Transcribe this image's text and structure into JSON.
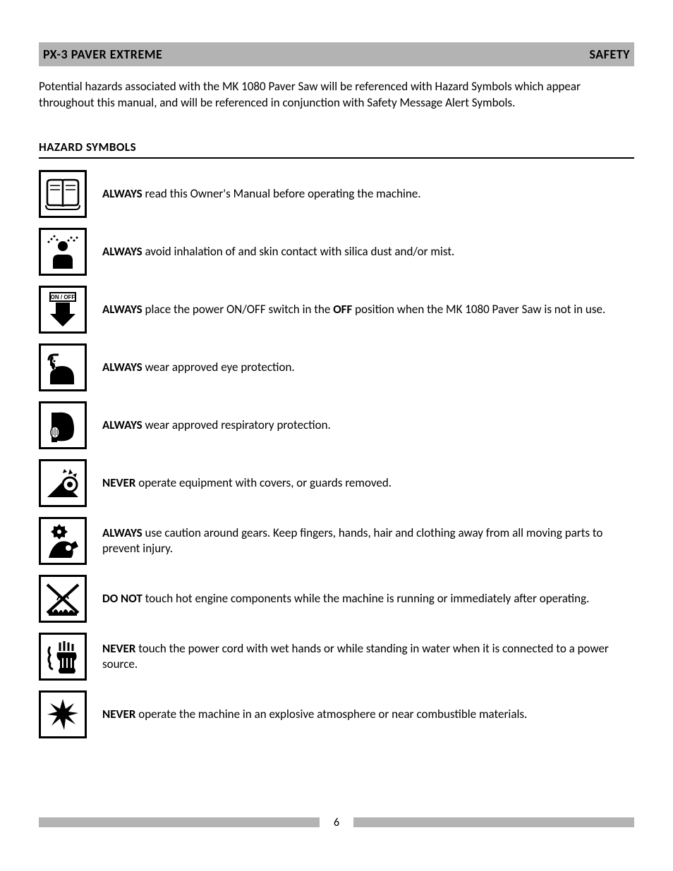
{
  "header": {
    "left": "PX-3 PAVER EXTREME",
    "right": "SAFETY"
  },
  "intro_text": "Potential hazards associated with the MK 1080 Paver Saw will be referenced with Hazard Symbols which appear throughout this manual, and will be referenced in conjunction with Safety Message Alert Symbols.",
  "section_title": "HAZARD SYMBOLS",
  "hazards": [
    {
      "bold": "ALWAYS",
      "rest": " read this Owner's Manual before operating the machine.",
      "icon": "book"
    },
    {
      "bold": "ALWAYS",
      "rest": " avoid inhalation of and skin contact with silica dust and/or mist.",
      "icon": "dust"
    },
    {
      "bold": "ALWAYS",
      "rest_pre": " place the power ON/OFF switch in the ",
      "bold2": "OFF",
      "rest_post": " position when the MK 1080 Paver Saw is not in use.",
      "icon": "onoff"
    },
    {
      "bold": "ALWAYS",
      "rest": " wear approved eye protection.",
      "icon": "eye"
    },
    {
      "bold": "ALWAYS",
      "rest": " wear approved respiratory protection.",
      "icon": "resp"
    },
    {
      "bold": "NEVER",
      "rest": " operate equipment with covers, or guards removed.",
      "icon": "guard"
    },
    {
      "bold": "ALWAYS",
      "rest": " use caution around gears. Keep fingers, hands, hair and clothing away from all moving parts to prevent injury.",
      "icon": "gears"
    },
    {
      "bold": "DO NOT",
      "rest": " touch hot engine components while the machine is running or immediately after operating.",
      "icon": "hot"
    },
    {
      "bold": "NEVER",
      "rest": " touch the power cord with wet hands or while standing in water when it is connected to a power source.",
      "icon": "wet"
    },
    {
      "bold": "NEVER",
      "rest": " operate the machine in an explosive atmosphere or near combustible materials.",
      "icon": "explode"
    }
  ],
  "page_number": "6",
  "colors": {
    "bar": "#b3b3b3",
    "text": "#000000",
    "bg": "#ffffff"
  }
}
